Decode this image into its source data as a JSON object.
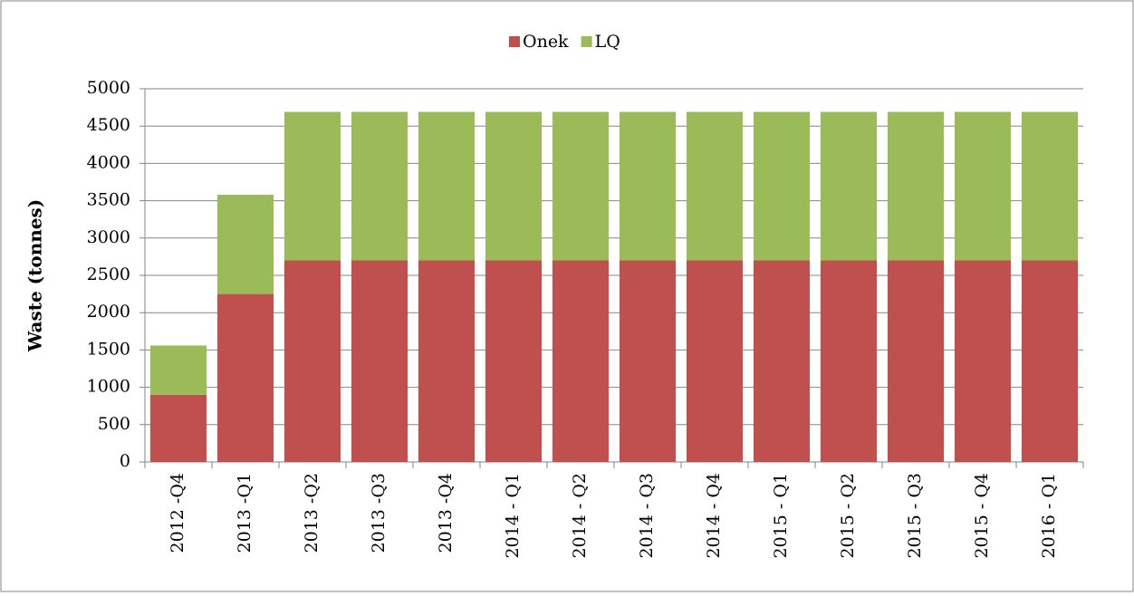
{
  "chart_data": {
    "type": "bar",
    "stacked": true,
    "y_label": "Waste (tonnes)",
    "categories": [
      "2012 -Q4",
      "2013 -Q1",
      "2013 -Q2",
      "2013 -Q3",
      "2013 -Q4",
      "2014 - Q1",
      "2014 - Q2",
      "2014 - Q3",
      "2014 - Q4",
      "2015 - Q1",
      "2015 - Q2",
      "2015 - Q3",
      "2015 - Q4",
      "2016 - Q1"
    ],
    "series": [
      {
        "name": "Onek",
        "color": "#c0504d",
        "values": [
          900,
          2250,
          2700,
          2700,
          2700,
          2700,
          2700,
          2700,
          2700,
          2700,
          2700,
          2700,
          2700,
          2700
        ]
      },
      {
        "name": "LQ",
        "color": "#9bbb59",
        "values": [
          660,
          1330,
          1990,
          1990,
          1990,
          1990,
          1990,
          1990,
          1990,
          1990,
          1990,
          1990,
          1990,
          1990
        ]
      }
    ],
    "ylim": [
      0,
      5000
    ],
    "yticks": [
      0,
      500,
      1000,
      1500,
      2000,
      2500,
      3000,
      3500,
      4000,
      4500,
      5000
    ],
    "grid": true,
    "legend": "top"
  }
}
